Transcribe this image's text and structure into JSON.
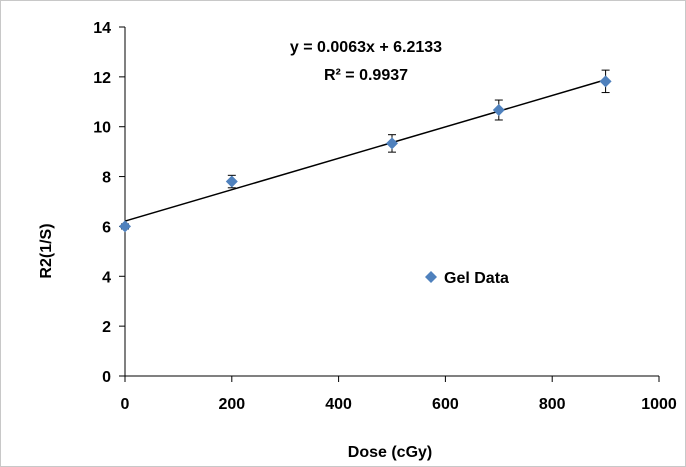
{
  "chart_data": {
    "type": "scatter",
    "title": "",
    "xlabel": "Dose (cGy)",
    "ylabel": "R2(1/S)",
    "xlim": [
      0,
      1000
    ],
    "ylim": [
      0,
      14
    ],
    "x_ticks": [
      "0",
      "200",
      "400",
      "600",
      "800",
      "1000"
    ],
    "y_ticks": [
      "0",
      "2",
      "4",
      "6",
      "8",
      "10",
      "12",
      "14"
    ],
    "grid": false,
    "legend_position": "center-right",
    "series": [
      {
        "name": "Gel Data",
        "color": "#4f81bd",
        "marker": "diamond",
        "points": [
          {
            "x": 0,
            "y": 6.0,
            "err": 0.1
          },
          {
            "x": 200,
            "y": 7.8,
            "err": 0.25
          },
          {
            "x": 500,
            "y": 9.33,
            "err": 0.35
          },
          {
            "x": 700,
            "y": 10.67,
            "err": 0.4
          },
          {
            "x": 900,
            "y": 11.82,
            "err": 0.45
          }
        ]
      }
    ],
    "trendline": {
      "slope": 0.0063,
      "intercept": 6.2133,
      "x_start": 0,
      "x_end": 900,
      "equation_text": "y = 0.0063x + 6.2133",
      "r2_text": "R² = 0.9937"
    }
  }
}
